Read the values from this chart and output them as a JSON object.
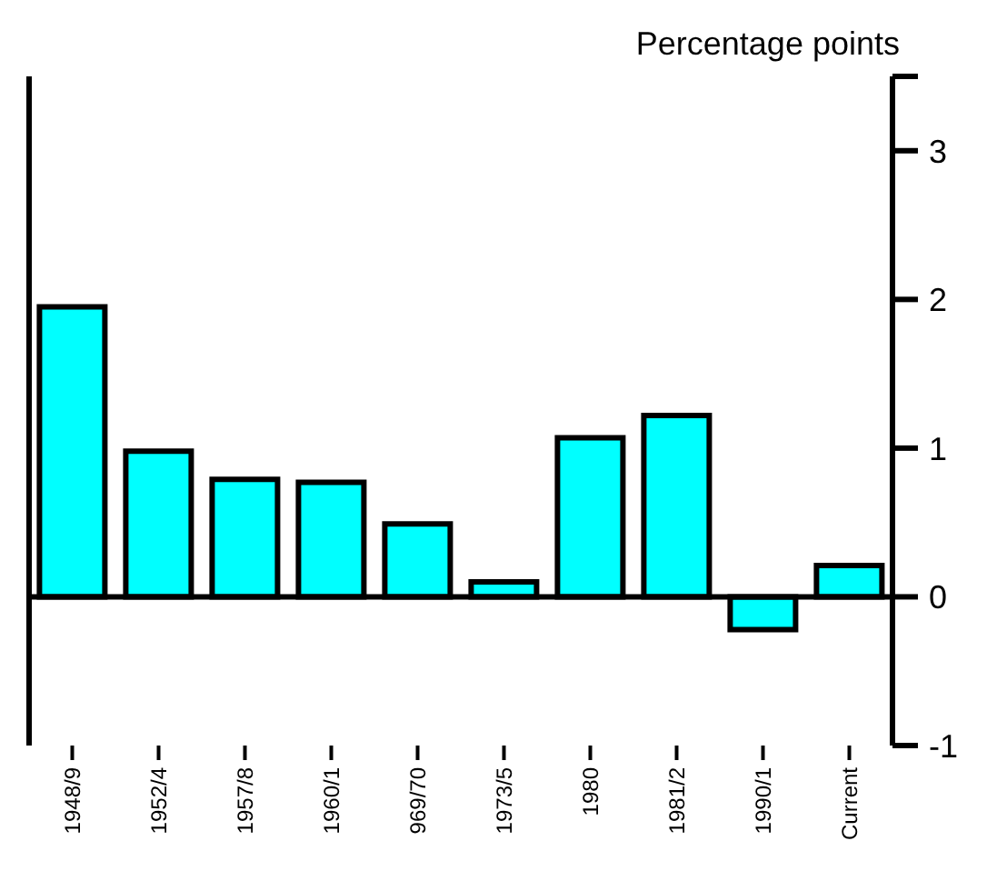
{
  "chart_data": {
    "type": "bar",
    "ylabel": "Percentage points",
    "categories": [
      "1948/9",
      "1952/4",
      "1957/8",
      "1960/1",
      "969/70",
      "1973/5",
      "1980",
      "1981/2",
      "1990/1",
      "Current"
    ],
    "values": [
      1.95,
      0.98,
      0.79,
      0.77,
      0.49,
      0.1,
      1.07,
      1.22,
      -0.22,
      0.21
    ],
    "color": "#00ffff",
    "ylim": [
      -1,
      3.5
    ],
    "yticks": [
      -1,
      0,
      1,
      2,
      3,
      {
        "value": 3.5,
        "label": null
      }
    ],
    "ref_lines": [
      {
        "axis": "y",
        "value": 0,
        "label": null,
        "color": "#000000"
      }
    ],
    "grid": false,
    "legend": false
  }
}
